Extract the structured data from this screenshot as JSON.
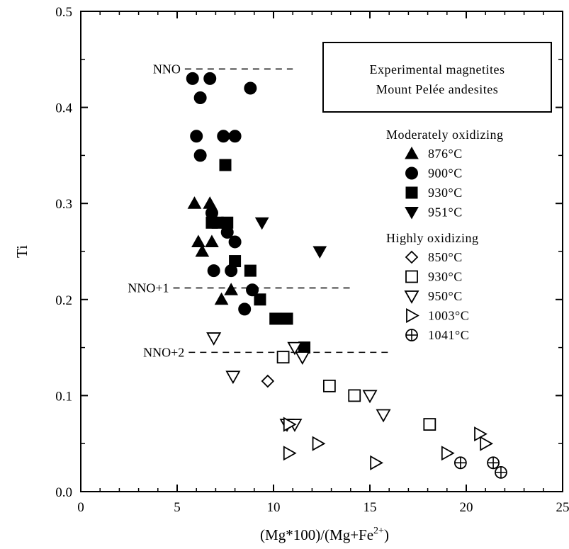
{
  "chart_data": {
    "type": "scatter",
    "title": "",
    "xlabel": "(Mg*100)/(Mg+Fe2+)",
    "xlabel_parts": {
      "main": "(Mg*100)/(Mg+Fe",
      "sup": "2+",
      "close": ")"
    },
    "ylabel": "Ti",
    "xlim": [
      0,
      25
    ],
    "ylim": [
      0,
      0.5
    ],
    "x_ticks": [
      "0",
      "5",
      "10",
      "15",
      "20",
      "25"
    ],
    "y_ticks": [
      "0.0",
      "0.1",
      "0.2",
      "0.3",
      "0.4",
      "0.5"
    ],
    "grid": false,
    "legend_placement": "top-right",
    "legend_box": [
      "Experimental magnetites",
      "Mount Pelée andesites"
    ],
    "legend_groups": [
      {
        "title": "Moderately oxidizing",
        "series": [
          0,
          1,
          2,
          3
        ]
      },
      {
        "title": "Highly oxidizing",
        "series": [
          4,
          5,
          6,
          7,
          8
        ]
      }
    ],
    "reference_lines": [
      {
        "label": "NNO",
        "y": 0.44,
        "x_range": [
          5.4,
          11.0
        ]
      },
      {
        "label": "NNO+1",
        "y": 0.212,
        "x_range": [
          4.8,
          14.2
        ]
      },
      {
        "label": "NNO+2",
        "y": 0.145,
        "x_range": [
          5.6,
          16.0
        ]
      }
    ],
    "series": [
      {
        "name": "876°C",
        "group": "Moderately oxidizing",
        "marker": "triangle-up-filled",
        "points": [
          [
            5.9,
            0.3
          ],
          [
            6.7,
            0.3
          ],
          [
            6.1,
            0.26
          ],
          [
            6.8,
            0.26
          ],
          [
            6.3,
            0.25
          ],
          [
            7.3,
            0.2
          ],
          [
            7.8,
            0.21
          ]
        ]
      },
      {
        "name": "900°C",
        "group": "Moderately oxidizing",
        "marker": "circle-filled",
        "points": [
          [
            5.8,
            0.43
          ],
          [
            6.7,
            0.43
          ],
          [
            6.2,
            0.41
          ],
          [
            8.8,
            0.42
          ],
          [
            6.0,
            0.37
          ],
          [
            7.4,
            0.37
          ],
          [
            8.0,
            0.37
          ],
          [
            6.2,
            0.35
          ],
          [
            6.8,
            0.29
          ],
          [
            7.6,
            0.27
          ],
          [
            8.0,
            0.26
          ],
          [
            6.9,
            0.23
          ],
          [
            7.8,
            0.23
          ],
          [
            8.9,
            0.21
          ],
          [
            8.5,
            0.19
          ]
        ]
      },
      {
        "name": "930°C",
        "group": "Moderately oxidizing",
        "marker": "square-filled",
        "points": [
          [
            7.5,
            0.34
          ],
          [
            6.8,
            0.28
          ],
          [
            7.1,
            0.28
          ],
          [
            7.6,
            0.28
          ],
          [
            8.0,
            0.24
          ],
          [
            8.8,
            0.23
          ],
          [
            9.3,
            0.2
          ],
          [
            10.1,
            0.18
          ],
          [
            10.7,
            0.18
          ],
          [
            11.6,
            0.15
          ]
        ]
      },
      {
        "name": "951°C",
        "group": "Moderately oxidizing",
        "marker": "triangle-down-filled",
        "points": [
          [
            9.4,
            0.28
          ],
          [
            12.4,
            0.25
          ]
        ]
      },
      {
        "name": "850°C",
        "group": "Highly oxidizing",
        "marker": "diamond-open",
        "points": [
          [
            9.7,
            0.115
          ]
        ]
      },
      {
        "name": "930°C",
        "group": "Highly oxidizing",
        "marker": "square-open",
        "points": [
          [
            10.5,
            0.14
          ],
          [
            12.9,
            0.11
          ],
          [
            14.2,
            0.1
          ],
          [
            18.1,
            0.07
          ]
        ]
      },
      {
        "name": "950°C",
        "group": "Highly oxidizing",
        "marker": "triangle-down-open",
        "points": [
          [
            6.9,
            0.16
          ],
          [
            7.9,
            0.12
          ],
          [
            11.1,
            0.15
          ],
          [
            11.5,
            0.14
          ],
          [
            15.0,
            0.1
          ],
          [
            15.7,
            0.08
          ],
          [
            10.7,
            0.07
          ],
          [
            11.1,
            0.07
          ]
        ]
      },
      {
        "name": "1003°C",
        "group": "Highly oxidizing",
        "marker": "triangle-right-open",
        "points": [
          [
            10.8,
            0.07
          ],
          [
            10.8,
            0.04
          ],
          [
            12.3,
            0.05
          ],
          [
            15.3,
            0.03
          ],
          [
            19.0,
            0.04
          ],
          [
            20.7,
            0.06
          ],
          [
            21.0,
            0.05
          ]
        ]
      },
      {
        "name": "1041°C",
        "group": "Highly oxidizing",
        "marker": "circle-cross-open",
        "points": [
          [
            19.7,
            0.03
          ],
          [
            21.4,
            0.03
          ],
          [
            21.8,
            0.02
          ]
        ]
      }
    ]
  }
}
